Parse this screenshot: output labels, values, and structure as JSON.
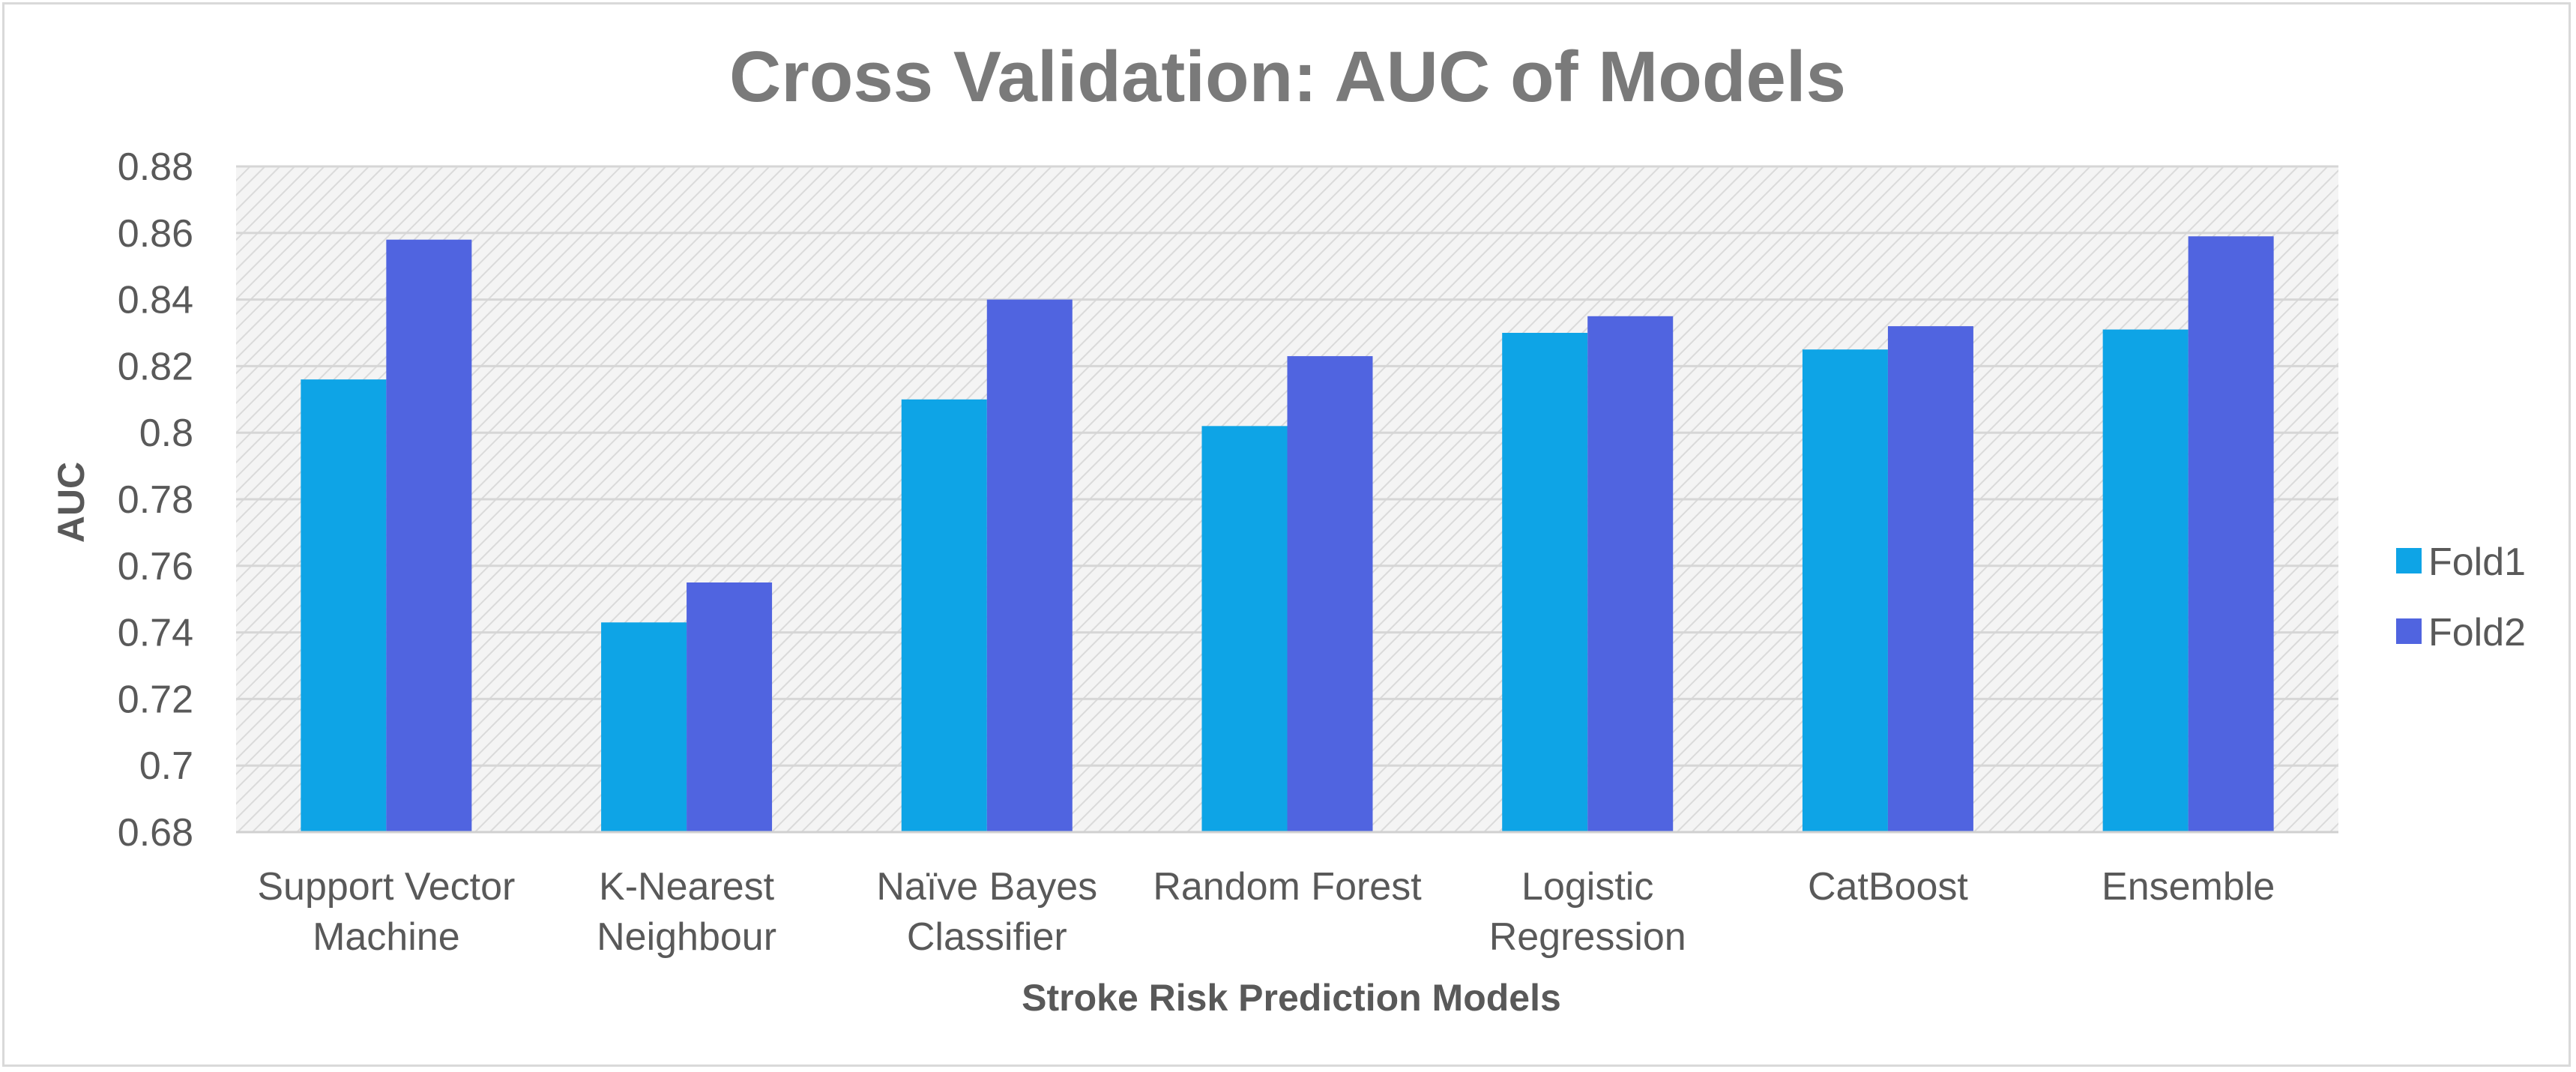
{
  "chart_data": {
    "type": "bar",
    "title": "Cross Validation: AUC of Models",
    "xlabel": "Stroke Risk Prediction Models",
    "ylabel": "AUC",
    "ylim": [
      0.68,
      0.88
    ],
    "yticks": [
      "0.68",
      "0.7",
      "0.72",
      "0.74",
      "0.76",
      "0.78",
      "0.8",
      "0.82",
      "0.84",
      "0.86",
      "0.88"
    ],
    "grid": true,
    "legend_position": "right",
    "categories": [
      [
        "Support Vector",
        "Machine"
      ],
      [
        "K-Nearest",
        "Neighbour"
      ],
      [
        "Naïve Bayes",
        "Classifier"
      ],
      [
        "Random Forest"
      ],
      [
        "Logistic",
        "Regression"
      ],
      [
        "CatBoost"
      ],
      [
        "Ensemble"
      ]
    ],
    "series": [
      {
        "name": "Fold1",
        "color": "#0ea4e6",
        "values": [
          0.816,
          0.743,
          0.81,
          0.802,
          0.83,
          0.825,
          0.831
        ]
      },
      {
        "name": "Fold2",
        "color": "#5064e0",
        "values": [
          0.858,
          0.755,
          0.84,
          0.823,
          0.835,
          0.832,
          0.859
        ]
      }
    ]
  }
}
